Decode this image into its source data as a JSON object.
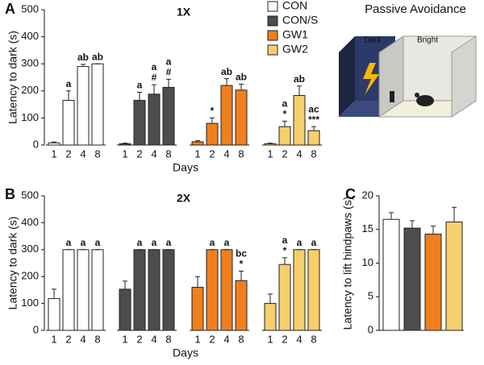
{
  "chart_data": [
    {
      "type": "bar",
      "panel_label": "A",
      "title": "1X",
      "y_label": "Latency to dark (s)",
      "x_label": "Days",
      "categories": [
        "1",
        "2",
        "4",
        "8"
      ],
      "ylim": [
        0,
        500
      ],
      "yticks": [
        0,
        100,
        200,
        300,
        400,
        500
      ],
      "legend": "top-right",
      "series": [
        {
          "name": "CON",
          "color": "#ffffff",
          "values": [
            8,
            165,
            290,
            300
          ],
          "errors": [
            3,
            35,
            8,
            0
          ],
          "annotations": [
            null,
            [
              "a"
            ],
            [
              "ab"
            ],
            [
              "ab"
            ]
          ]
        },
        {
          "name": "CON/S",
          "color": "#4d4d4d",
          "values": [
            5,
            165,
            188,
            213
          ],
          "errors": [
            2,
            30,
            35,
            30
          ],
          "annotations": [
            null,
            [
              "a"
            ],
            [
              "a",
              "#"
            ],
            [
              "a",
              "#"
            ]
          ]
        },
        {
          "name": "GW1",
          "color": "#f07f1e",
          "values": [
            12,
            80,
            220,
            203
          ],
          "errors": [
            4,
            20,
            25,
            22
          ],
          "annotations": [
            null,
            [
              "*"
            ],
            [
              "ab"
            ],
            [
              "ab"
            ]
          ]
        },
        {
          "name": "GW2",
          "color": "#f7cf6b",
          "values": [
            5,
            68,
            183,
            53
          ],
          "errors": [
            2,
            20,
            35,
            15
          ],
          "annotations": [
            null,
            [
              "a",
              "*"
            ],
            [
              "ab"
            ],
            [
              "ac",
              "***"
            ]
          ]
        }
      ]
    },
    {
      "type": "bar",
      "panel_label": "B",
      "title": "2X",
      "y_label": "Latency to dark (s)",
      "x_label": "Days",
      "categories": [
        "1",
        "2",
        "4",
        "8"
      ],
      "ylim": [
        0,
        500
      ],
      "yticks": [
        0,
        100,
        200,
        300,
        400,
        500
      ],
      "series": [
        {
          "color": "#ffffff",
          "values": [
            118,
            300,
            300,
            300
          ],
          "errors": [
            35,
            0,
            0,
            0
          ],
          "annotations": [
            null,
            [
              "a"
            ],
            [
              "a"
            ],
            [
              "a"
            ]
          ]
        },
        {
          "color": "#4d4d4d",
          "values": [
            153,
            300,
            300,
            300
          ],
          "errors": [
            30,
            0,
            0,
            0
          ],
          "annotations": [
            null,
            [
              "a"
            ],
            [
              "a"
            ],
            [
              "a"
            ]
          ]
        },
        {
          "color": "#f07f1e",
          "values": [
            160,
            300,
            300,
            185
          ],
          "errors": [
            40,
            0,
            0,
            35
          ],
          "annotations": [
            null,
            [
              "a"
            ],
            [
              "a"
            ],
            [
              "bc",
              "*"
            ]
          ]
        },
        {
          "color": "#f7cf6b",
          "values": [
            100,
            245,
            300,
            300
          ],
          "errors": [
            35,
            25,
            0,
            0
          ],
          "annotations": [
            null,
            [
              "a",
              "*"
            ],
            [
              "a"
            ],
            [
              "a"
            ]
          ]
        }
      ]
    },
    {
      "type": "bar",
      "panel_label": "C",
      "y_label": "Latency to lift hindpaws (s)",
      "ylim": [
        0,
        20
      ],
      "yticks": [
        0,
        5,
        10,
        15,
        20
      ],
      "values": [
        16.5,
        15.2,
        14.3,
        16.1
      ],
      "errors": [
        1.0,
        1.1,
        1.2,
        2.2
      ],
      "colors": [
        "#ffffff",
        "#4d4d4d",
        "#f07f1e",
        "#f7cf6b"
      ]
    }
  ],
  "illustration": {
    "title": "Passive Avoidance",
    "labels": [
      "Dark",
      "Bright"
    ]
  }
}
